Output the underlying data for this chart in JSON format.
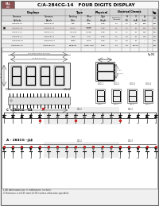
{
  "title": "C/A-284CG-14   FOUR DIGITS DISPLAY",
  "logo_color": "#8B5050",
  "bg_color": "#f0f0f0",
  "inner_bg": "#ffffff",
  "table_header_bg": "#c8c8c8",
  "border_color": "#888888",
  "text_color": "#000000",
  "footnote1": "1.All dimensions are in millimeters (inches).",
  "footnote2": "2.Tolerance is ±0.25 mm(±0.01) unless otherwise specified.",
  "fig_label": "Fig.001"
}
